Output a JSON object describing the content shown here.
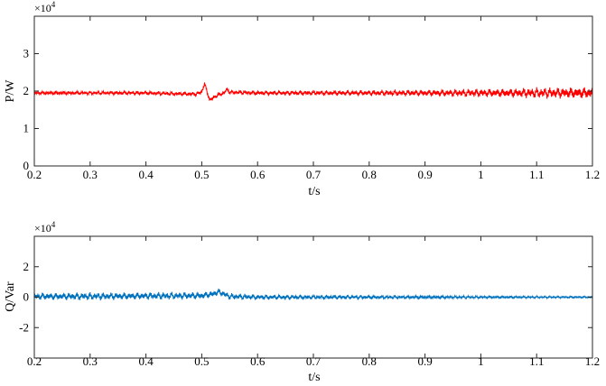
{
  "chart_data": [
    {
      "type": "line",
      "xlabel": "t/s",
      "ylabel": "P/W",
      "exponent_label": "×10",
      "exponent_power": "4",
      "xlim": [
        0.2,
        1.2
      ],
      "ylim": [
        0,
        4
      ],
      "xticks": [
        "0.2",
        "0.3",
        "0.4",
        "0.5",
        "0.6",
        "0.7",
        "0.8",
        "0.9",
        "1",
        "1.1",
        "1.2"
      ],
      "yticks": [
        "0",
        "1",
        "2",
        "3"
      ],
      "grid": false,
      "series": [
        {
          "color": "#ff0000",
          "baseline": 1.95,
          "noise": [
            [
              0.2,
              0.04
            ],
            [
              0.45,
              0.05
            ],
            [
              0.7,
              0.06
            ],
            [
              0.9,
              0.08
            ],
            [
              1.0,
              0.1
            ],
            [
              1.2,
              0.15
            ]
          ],
          "x": [
            0.2,
            0.25,
            0.3,
            0.35,
            0.4,
            0.45,
            0.49,
            0.5,
            0.505,
            0.51,
            0.515,
            0.52,
            0.53,
            0.54,
            0.545,
            0.55,
            0.6,
            0.7,
            0.8,
            0.9,
            1.0,
            1.1,
            1.2
          ],
          "y": [
            1.95,
            1.95,
            1.95,
            1.95,
            1.95,
            1.93,
            1.92,
            1.98,
            2.2,
            1.95,
            1.75,
            1.82,
            1.9,
            1.95,
            2.05,
            1.97,
            1.95,
            1.95,
            1.95,
            1.95,
            1.95,
            1.95,
            1.95
          ]
        }
      ]
    },
    {
      "type": "line",
      "xlabel": "t/s",
      "ylabel": "Q/Var",
      "exponent_label": "×10",
      "exponent_power": "4",
      "xlim": [
        0.2,
        1.2
      ],
      "ylim": [
        -4,
        4
      ],
      "xticks": [
        "0.2",
        "0.3",
        "0.4",
        "0.5",
        "0.6",
        "0.7",
        "0.8",
        "0.9",
        "1",
        "1.1",
        "1.2"
      ],
      "yticks": [
        "-2",
        "0",
        "2"
      ],
      "grid": false,
      "series": [
        {
          "color": "#0072bd",
          "baseline": 0.05,
          "noise": [
            [
              0.2,
              0.22
            ],
            [
              0.5,
              0.22
            ],
            [
              0.6,
              0.16
            ],
            [
              0.8,
              0.12
            ],
            [
              1.0,
              0.08
            ],
            [
              1.2,
              0.06
            ]
          ],
          "x": [
            0.2,
            0.3,
            0.4,
            0.5,
            0.52,
            0.53,
            0.54,
            0.55,
            0.6,
            0.7,
            0.8,
            0.9,
            1.0,
            1.1,
            1.2
          ],
          "y": [
            0.05,
            0.05,
            0.08,
            0.1,
            0.2,
            0.35,
            0.2,
            0.05,
            0.0,
            0.0,
            0.0,
            0.0,
            0.0,
            0.0,
            0.0
          ]
        }
      ]
    }
  ]
}
